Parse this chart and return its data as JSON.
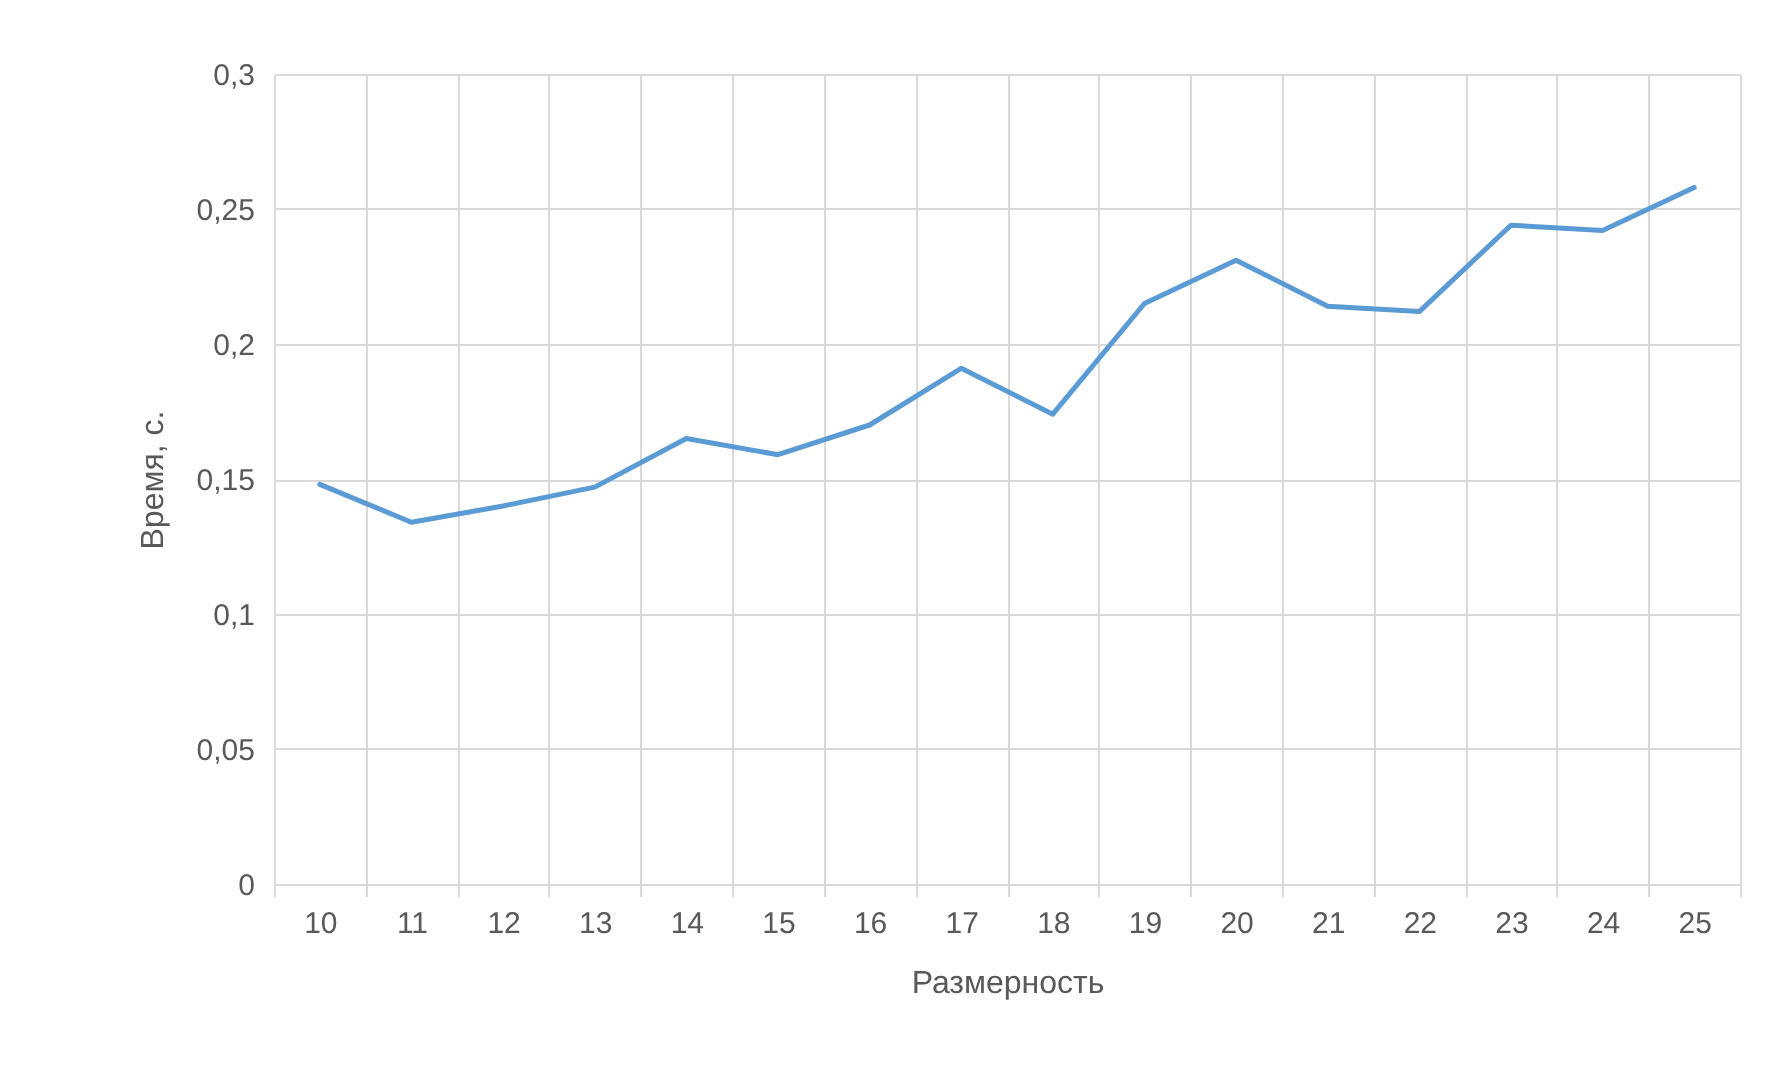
{
  "chart_data": {
    "type": "line",
    "xlabel": "Размерность",
    "ylabel": "Время, с.",
    "categories": [
      "10",
      "11",
      "12",
      "13",
      "14",
      "15",
      "16",
      "17",
      "18",
      "19",
      "20",
      "21",
      "22",
      "23",
      "24",
      "25"
    ],
    "series": [
      {
        "color": "#5b9bd5",
        "values": [
          0.148,
          0.134,
          0.14,
          0.147,
          0.165,
          0.159,
          0.17,
          0.191,
          0.174,
          0.215,
          0.231,
          0.214,
          0.212,
          0.244,
          0.242,
          0.258
        ]
      }
    ],
    "ylim": [
      0,
      0.3
    ],
    "yticks": [
      0,
      {
        "value": 0.05,
        "label": "0,05"
      },
      {
        "value": 0.1,
        "label": "0,1"
      },
      {
        "value": 0.15,
        "label": "0,15"
      },
      {
        "value": 0.2,
        "label": "0,2"
      },
      {
        "value": 0.25,
        "label": "0,25"
      },
      {
        "value": 0.3,
        "label": "0,3"
      }
    ],
    "grid": true,
    "marker": "none",
    "line_style": "solid",
    "legend": false
  }
}
